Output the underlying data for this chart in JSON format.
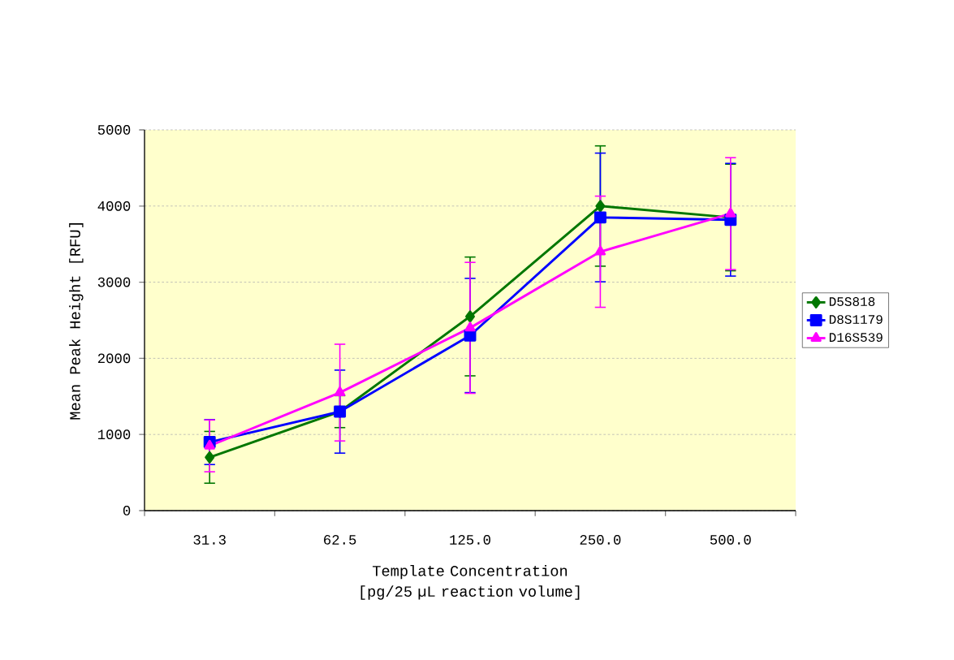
{
  "chart_data": {
    "type": "line",
    "xlabel": "Template Concentration [pg/25 µL reaction volume]",
    "ylabel": "Mean Peak Height [RFU]",
    "categories": [
      "31.3",
      "62.5",
      "125.0",
      "250.0",
      "500.0"
    ],
    "ylim": [
      0,
      5000
    ],
    "yticks": [
      0,
      1000,
      2000,
      3000,
      4000,
      5000
    ],
    "grid": "y",
    "legend": "right",
    "line_style": "solid",
    "series": [
      {
        "name": "D5S818",
        "color": "#007700",
        "marker": "diamond",
        "values": [
          700,
          1300,
          2550,
          4000,
          3850
        ],
        "errors": [
          340,
          210,
          780,
          790,
          700
        ]
      },
      {
        "name": "D8S1179",
        "color": "#0000ff",
        "marker": "square",
        "values": [
          900,
          1300,
          2300,
          3850,
          3820
        ],
        "errors": [
          295,
          545,
          750,
          845,
          740
        ]
      },
      {
        "name": "D16S539",
        "color": "#ff00ff",
        "marker": "triangle",
        "values": [
          850,
          1550,
          2400,
          3400,
          3900
        ],
        "errors": [
          340,
          635,
          860,
          730,
          735
        ]
      }
    ]
  }
}
